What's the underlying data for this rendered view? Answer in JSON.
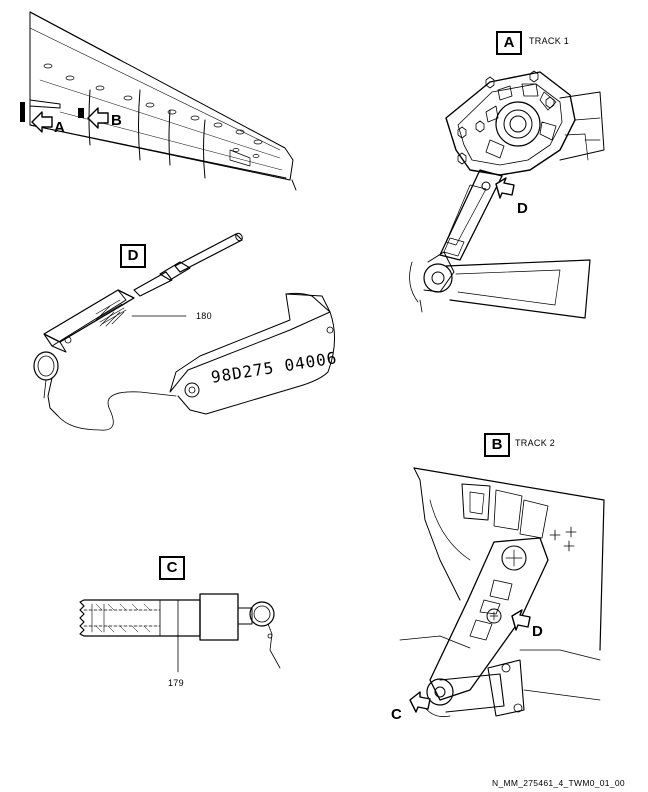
{
  "views": {
    "overview": {
      "callout_a": "A",
      "callout_b": "B"
    },
    "detail_a": {
      "letter": "A",
      "title": "TRACK 1",
      "callout_d": "D"
    },
    "detail_b": {
      "letter": "B",
      "title": "TRACK 2",
      "callout_d": "D",
      "callout_c": "C"
    },
    "detail_d": {
      "letter": "D",
      "item_number": "180",
      "tag_text": "98D275 04006"
    },
    "detail_c": {
      "letter": "C",
      "item_number": "179"
    }
  },
  "figure_id": "N_MM_275461_4_TWM0_01_00"
}
